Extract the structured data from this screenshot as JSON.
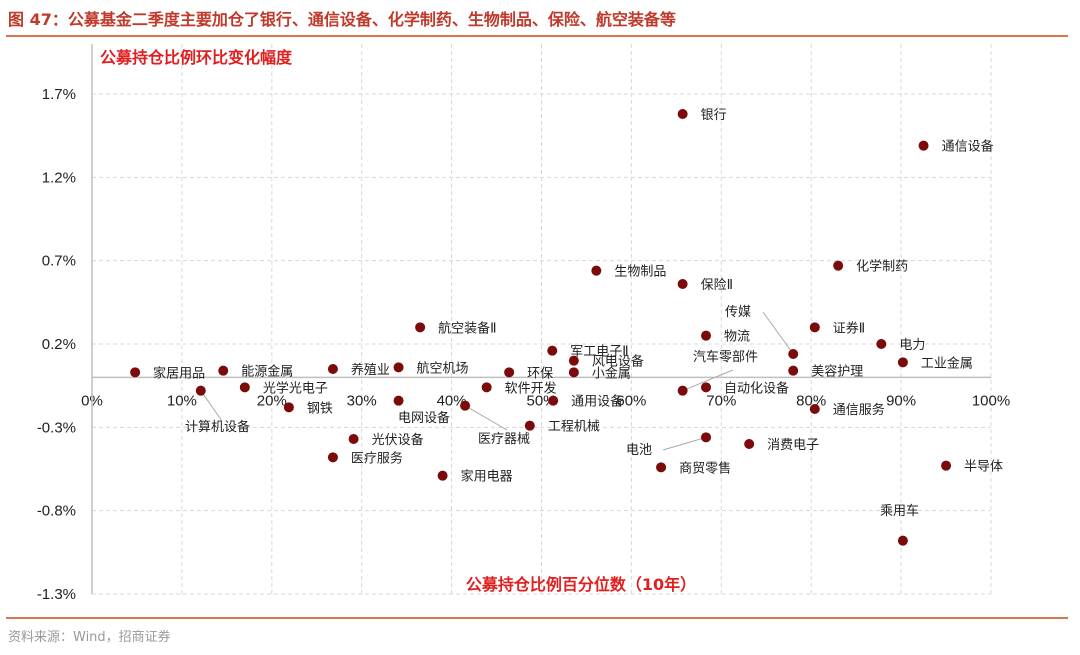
{
  "figure_title": "图 47：公募基金二季度主要加仓了银行、通信设备、化学制药、生物制品、保险、航空装备等",
  "source": "资料来源：Wind，招商证券",
  "colors": {
    "point": "#7B0A0A",
    "title": "#C0392B",
    "axis_title": "#E02020",
    "rule": "#D9764A"
  },
  "chart_data": {
    "type": "scatter",
    "title": "公募持仓比例环比变化幅度",
    "xlabel": "公募持仓比例百分位数（10年）",
    "ylabel": "",
    "xlim": [
      0,
      100
    ],
    "ylim": [
      -1.3,
      1.7
    ],
    "x_unit": "%",
    "y_unit": "%",
    "x_ticks": [
      "0%",
      "10%",
      "20%",
      "30%",
      "40%",
      "50%",
      "60%",
      "70%",
      "80%",
      "90%",
      "100%"
    ],
    "y_ticks": [
      "1.7%",
      "1.2%",
      "0.7%",
      "0.2%",
      "-0.3%",
      "-0.8%",
      "-1.3%"
    ],
    "grid": true,
    "points": [
      {
        "label": "银行",
        "x": 65.7,
        "y": 1.58
      },
      {
        "label": "通信设备",
        "x": 92.5,
        "y": 1.39
      },
      {
        "label": "生物制品",
        "x": 56.1,
        "y": 0.64
      },
      {
        "label": "化学制药",
        "x": 83.0,
        "y": 0.67
      },
      {
        "label": "保险Ⅱ",
        "x": 65.7,
        "y": 0.56
      },
      {
        "label": "航空装备Ⅱ",
        "x": 36.5,
        "y": 0.3
      },
      {
        "label": "物流",
        "x": 68.3,
        "y": 0.25
      },
      {
        "label": "证券Ⅱ",
        "x": 80.4,
        "y": 0.3
      },
      {
        "label": "电力",
        "x": 87.8,
        "y": 0.2
      },
      {
        "label": "传媒",
        "x": 78.0,
        "y": 0.14
      },
      {
        "label": "军工电子Ⅱ",
        "x": 51.2,
        "y": 0.16
      },
      {
        "label": "风电设备",
        "x": 53.6,
        "y": 0.1
      },
      {
        "label": "小金属",
        "x": 53.6,
        "y": 0.03
      },
      {
        "label": "工业金属",
        "x": 90.2,
        "y": 0.09
      },
      {
        "label": "美容护理",
        "x": 78.0,
        "y": 0.04
      },
      {
        "label": "家居用品",
        "x": 4.8,
        "y": 0.03
      },
      {
        "label": "能源金属",
        "x": 14.6,
        "y": 0.04
      },
      {
        "label": "养殖业",
        "x": 26.8,
        "y": 0.05
      },
      {
        "label": "航空机场",
        "x": 34.1,
        "y": 0.06
      },
      {
        "label": "环保",
        "x": 46.4,
        "y": 0.03
      },
      {
        "label": "汽车零部件",
        "x": 65.7,
        "y": -0.08
      },
      {
        "label": "自动化设备",
        "x": 68.3,
        "y": -0.06
      },
      {
        "label": "光学光电子",
        "x": 17.0,
        "y": -0.06
      },
      {
        "label": "计算机设备",
        "x": 12.1,
        "y": -0.08
      },
      {
        "label": "软件开发",
        "x": 43.9,
        "y": -0.06
      },
      {
        "label": "钢铁",
        "x": 21.9,
        "y": -0.18
      },
      {
        "label": "电网设备",
        "x": 34.1,
        "y": -0.14
      },
      {
        "label": "医疗器械",
        "x": 41.5,
        "y": -0.17
      },
      {
        "label": "通用设备",
        "x": 51.3,
        "y": -0.14
      },
      {
        "label": "工程机械",
        "x": 48.7,
        "y": -0.29
      },
      {
        "label": "通信服务",
        "x": 80.4,
        "y": -0.19
      },
      {
        "label": "光伏设备",
        "x": 29.1,
        "y": -0.37
      },
      {
        "label": "电池",
        "x": 68.3,
        "y": -0.36
      },
      {
        "label": "消费电子",
        "x": 73.1,
        "y": -0.4
      },
      {
        "label": "医疗服务",
        "x": 26.8,
        "y": -0.48
      },
      {
        "label": "商贸零售",
        "x": 63.3,
        "y": -0.54
      },
      {
        "label": "家用电器",
        "x": 39.0,
        "y": -0.59
      },
      {
        "label": "半导体",
        "x": 95.0,
        "y": -0.53
      },
      {
        "label": "乘用车",
        "x": 90.2,
        "y": -0.98
      }
    ]
  }
}
